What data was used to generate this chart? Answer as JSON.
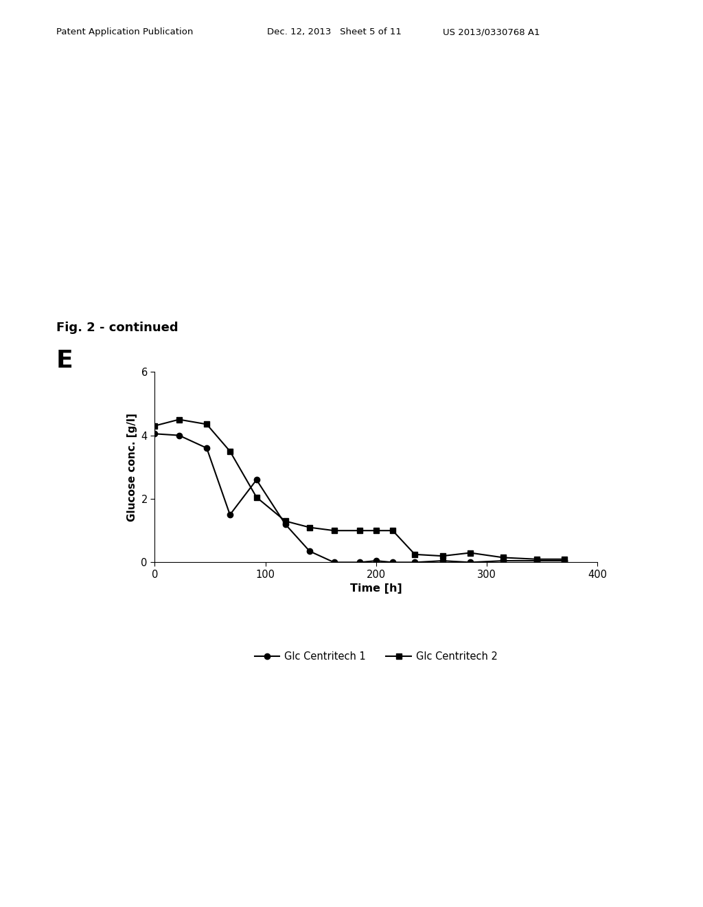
{
  "series1_name": "Glc Centritech 1",
  "series2_name": "Glc Centritech 2",
  "series1_x": [
    0,
    22,
    47,
    68,
    92,
    118,
    140,
    162,
    185,
    200,
    215,
    235,
    260,
    285,
    315,
    345,
    370
  ],
  "series1_y": [
    4.05,
    4.0,
    3.6,
    1.5,
    2.6,
    1.2,
    0.35,
    0.0,
    0.0,
    0.05,
    0.0,
    0.0,
    0.05,
    0.0,
    0.05,
    0.05,
    0.05
  ],
  "series2_x": [
    0,
    22,
    47,
    68,
    92,
    118,
    140,
    162,
    185,
    200,
    215,
    235,
    260,
    285,
    315,
    345,
    370
  ],
  "series2_y": [
    4.3,
    4.5,
    4.35,
    3.5,
    2.05,
    1.3,
    1.1,
    1.0,
    1.0,
    1.0,
    1.0,
    0.25,
    0.2,
    0.3,
    0.15,
    0.1,
    0.1
  ],
  "xlabel": "Time [h]",
  "ylabel": "Glucose conc. [g/l]",
  "xlim": [
    0,
    400
  ],
  "ylim": [
    0,
    6
  ],
  "xticks": [
    0,
    100,
    200,
    300,
    400
  ],
  "yticks": [
    0,
    2,
    4,
    6
  ],
  "fig_label": "E",
  "fig_title": "Fig. 2 - continued",
  "header_left": "Patent Application Publication",
  "header_mid": "Dec. 12, 2013   Sheet 5 of 11",
  "header_right": "US 2013/0330768 A1",
  "background_color": "#ffffff",
  "line_color": "#000000",
  "marker_color": "#000000"
}
